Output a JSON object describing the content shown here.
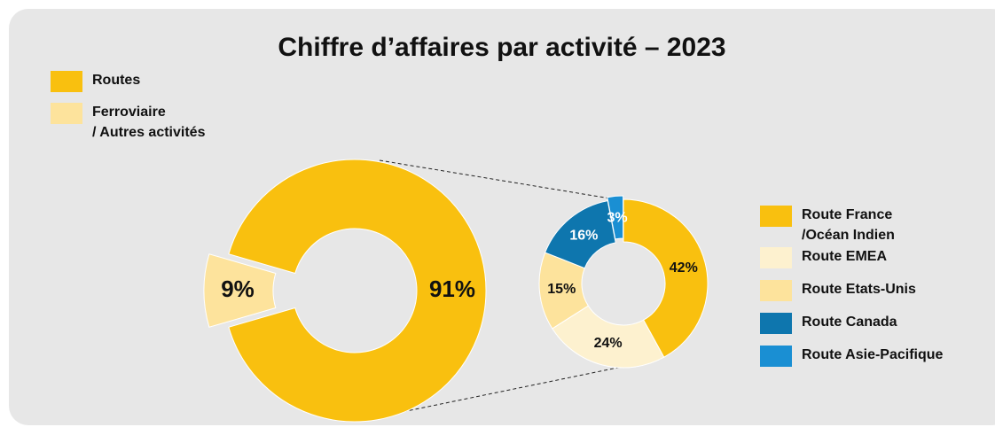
{
  "chart_data": [
    {
      "type": "donut",
      "title": "Chiffre d’affaires par activité – 2023",
      "categories": [
        "Routes",
        "Ferroviaire\n/ Autres activités"
      ],
      "values": [
        91,
        9
      ],
      "value_labels": [
        "91%",
        "9%"
      ],
      "colors": [
        "#f9c00f",
        "#fde39c"
      ]
    },
    {
      "type": "donut",
      "categories": [
        "Route France\n/Océan Indien",
        "Route EMEA",
        "Route Etats-Unis",
        "Route Canada",
        "Route Asie-Pacifique"
      ],
      "values": [
        42,
        24,
        15,
        16,
        3
      ],
      "value_labels": [
        "42%",
        "24%",
        "15%",
        "16%",
        "3%"
      ],
      "colors": [
        "#f9c00f",
        "#fdf1cf",
        "#fde39c",
        "#0e76ae",
        "#1a8fd3"
      ]
    }
  ]
}
